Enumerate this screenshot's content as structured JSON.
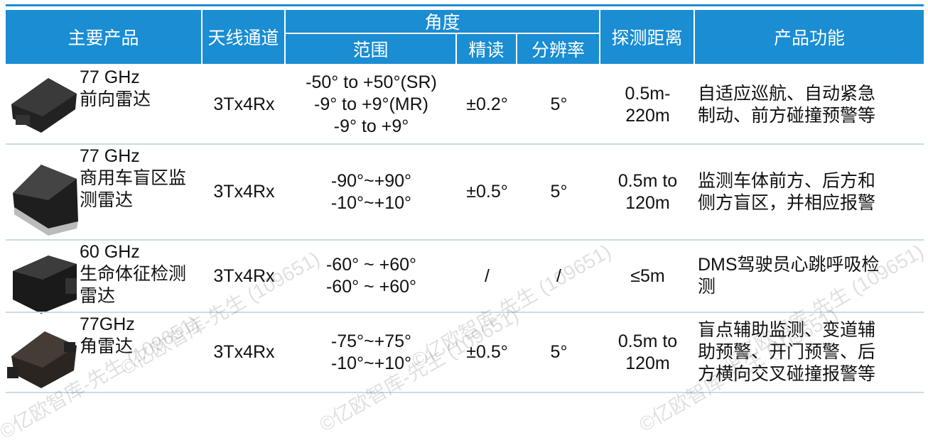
{
  "table": {
    "header": {
      "product": "主要产品",
      "antenna": "天线通道",
      "angle": "角度",
      "range": "范围",
      "accuracy": "精读",
      "resolution": "分辨率",
      "distance": "探测距离",
      "function": "产品功能"
    },
    "rows": [
      {
        "product": [
          "77 GHz",
          "前向雷达"
        ],
        "antenna": "3Tx4Rx",
        "range": [
          "-50° to +50°(SR)",
          "-9° to +9°(MR)",
          "-9° to +9°"
        ],
        "accuracy": "±0.2°",
        "resolution": "5°",
        "distance": [
          "0.5m-",
          "220m"
        ],
        "function": [
          "自适应巡航、自动紧急",
          "制动、前方碰撞预警等"
        ]
      },
      {
        "product": [
          "77 GHz",
          "商用车盲区监",
          "测雷达"
        ],
        "antenna": "3Tx4Rx",
        "range": [
          "-90°~+90°",
          "-10°~+10°"
        ],
        "accuracy": "±0.5°",
        "resolution": "5°",
        "distance": [
          "0.5m to",
          "120m"
        ],
        "function": [
          "监测车体前方、后方和",
          "侧方盲区，并相应报警"
        ]
      },
      {
        "product": [
          "60 GHz",
          "生命体征检测",
          "雷达"
        ],
        "antenna": "3Tx4Rx",
        "range": [
          "-60° ~ +60°",
          "-60° ~ +60°"
        ],
        "accuracy": "/",
        "resolution": "/",
        "distance": [
          "≤5m"
        ],
        "function": [
          "DMS驾驶员心跳呼吸检",
          "测"
        ]
      },
      {
        "product": [
          "77GHz",
          "角雷达"
        ],
        "antenna": "3Tx4Rx",
        "range": [
          "-75°~+75°",
          "-10°~+10°"
        ],
        "accuracy": "±0.5°",
        "resolution": "5°",
        "distance": [
          "0.5m to",
          "120m"
        ],
        "function": [
          "盲点辅助监测、变道辅",
          "助预警、开门预警、后",
          "方横向交叉碰撞报警等"
        ]
      }
    ]
  },
  "watermark": "©亿欧智库-先生 (109651)"
}
